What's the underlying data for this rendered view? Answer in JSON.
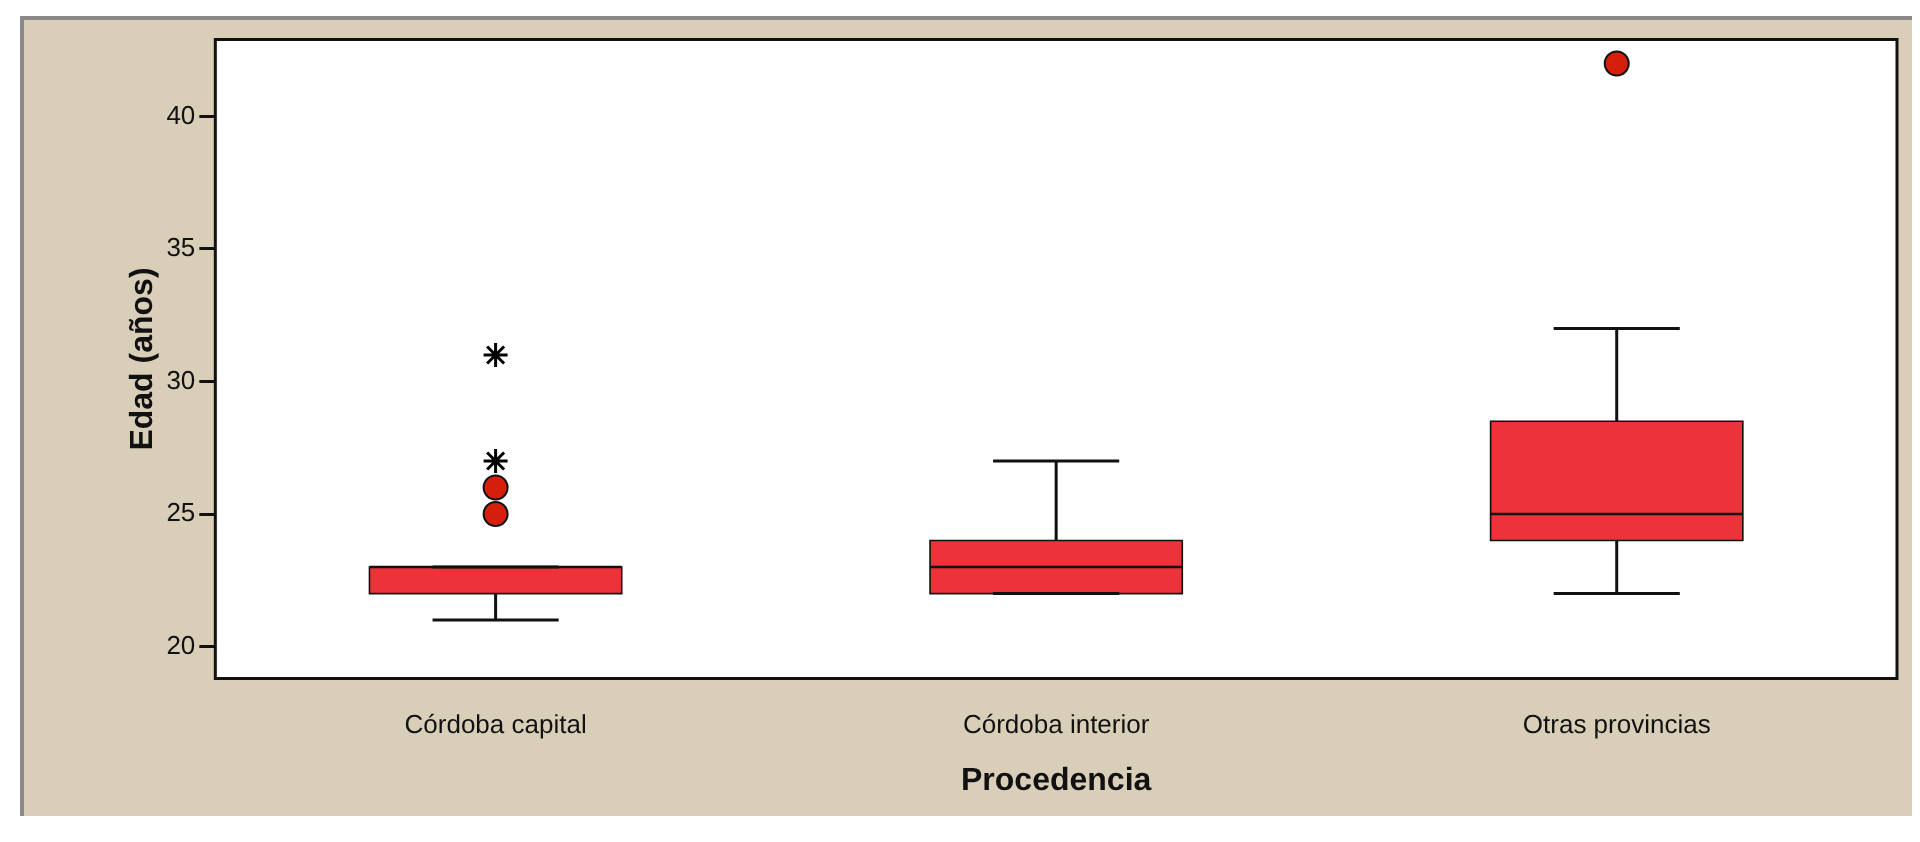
{
  "chart_data": {
    "type": "box",
    "xlabel": "Procedencia",
    "ylabel": "Edad (años)",
    "categories": [
      "Córdoba capital",
      "Córdoba interior",
      "Otras provincias"
    ],
    "series": [
      {
        "color": "#ee3239",
        "boxes": [
          {
            "low": 21,
            "q1": 22,
            "median": 23,
            "q3": 23,
            "high": 23,
            "outliers": [
              25,
              26
            ]
          },
          {
            "low": 22,
            "q1": 22,
            "median": 23,
            "q3": 24,
            "high": 27
          },
          {
            "low": 22,
            "q1": 24,
            "median": 25,
            "q3": 28.5,
            "high": 32,
            "outliers": [
              42
            ]
          }
        ]
      },
      {
        "type": "scatter",
        "marker": "cross",
        "color": "#000000",
        "x": [
          "Córdoba capital",
          "Córdoba capital"
        ],
        "values": [
          27,
          31
        ]
      }
    ],
    "ylim": [
      18.8,
      42.9
    ],
    "yticks": [
      20,
      25,
      30,
      35,
      40
    ],
    "grid": false,
    "legend": false
  }
}
